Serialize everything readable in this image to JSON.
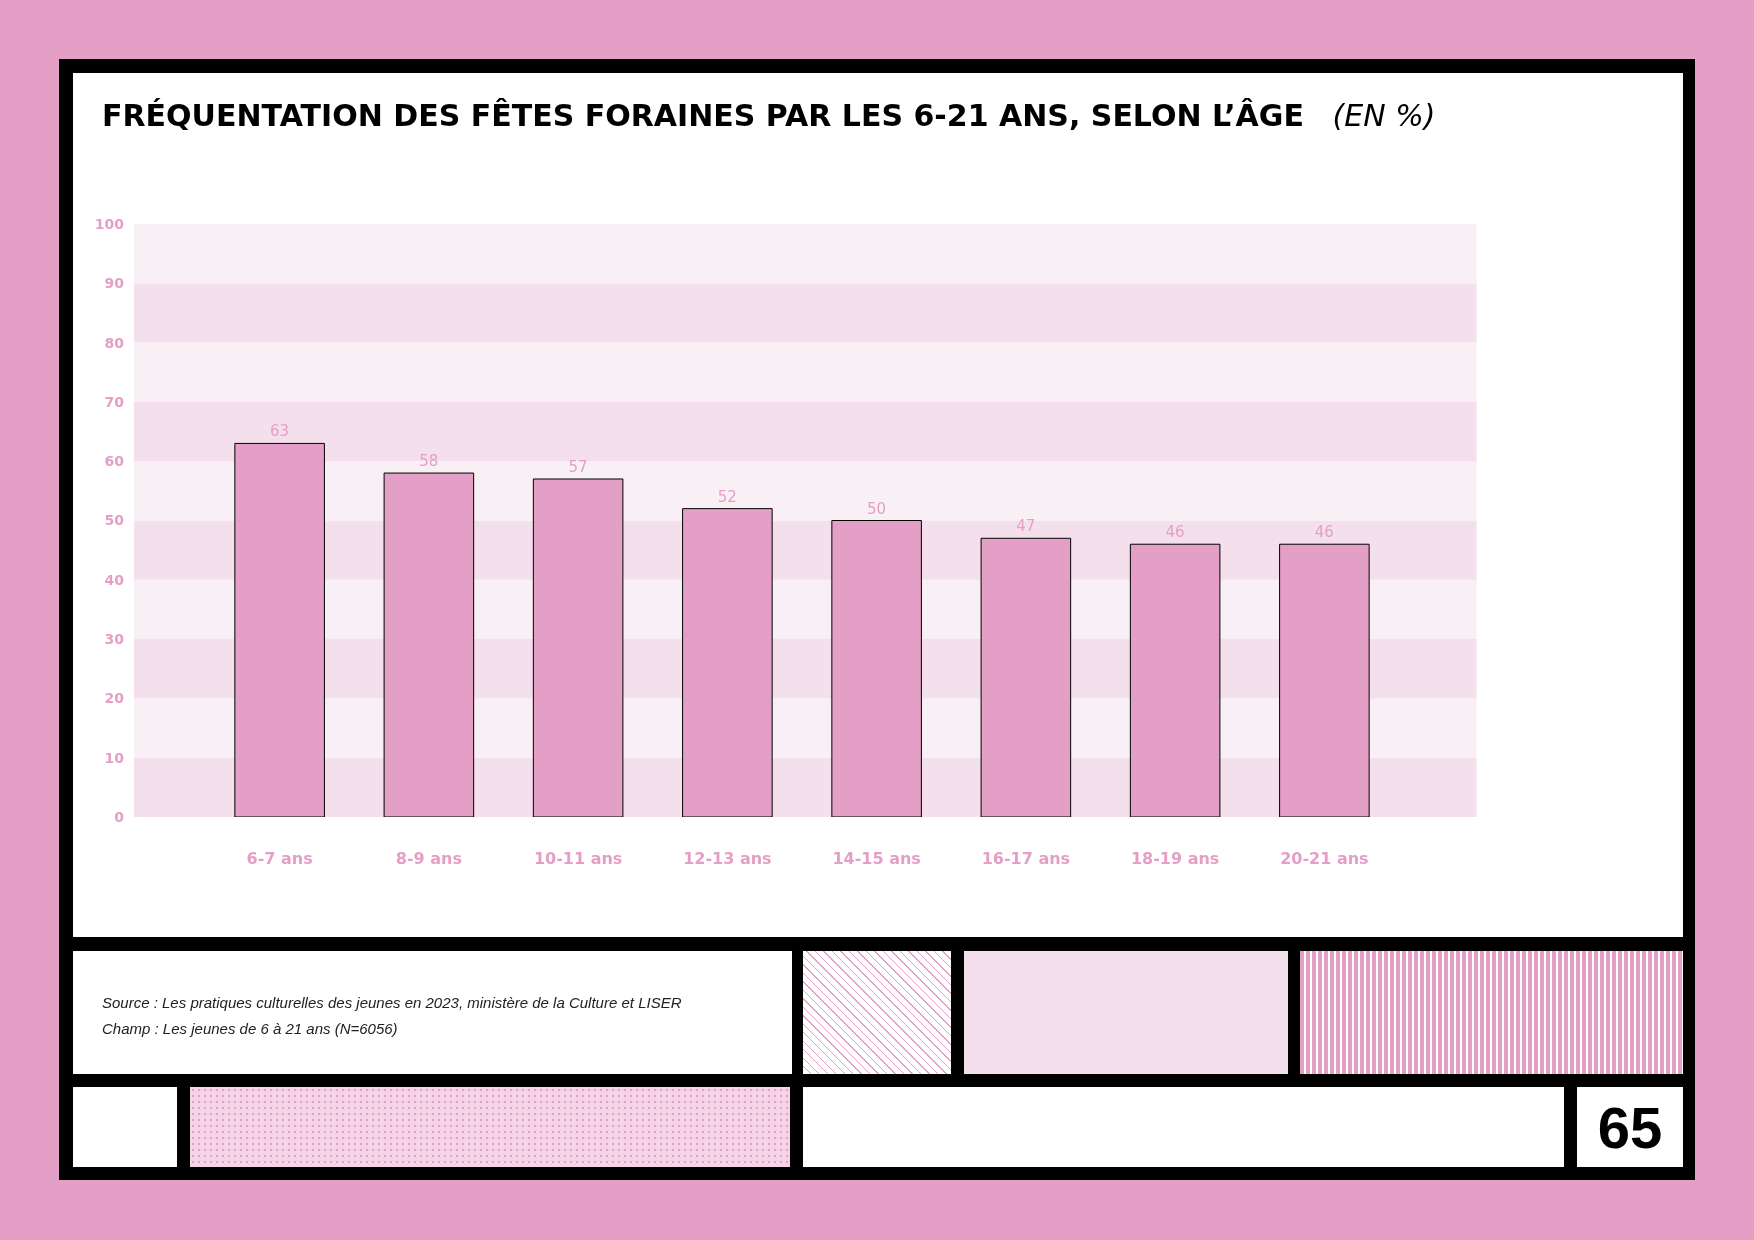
{
  "chart_data": {
    "type": "bar",
    "title": "FRÉQUENTATION DES FÊTES FORAINES PAR LES 6-21 ANS, SELON L’ÂGE",
    "subtitle": "(EN %)",
    "categories": [
      "6-7 ans",
      "8-9 ans",
      "10-11 ans",
      "12-13 ans",
      "14-15 ans",
      "16-17 ans",
      "18-19 ans",
      "20-21 ans"
    ],
    "values": [
      63,
      58,
      57,
      52,
      50,
      47,
      46,
      46
    ],
    "color": "#e49fc6",
    "data_labels": true,
    "ylim": [
      0,
      100
    ],
    "yticks": [
      0,
      10,
      20,
      30,
      40,
      50,
      60,
      70,
      80,
      90,
      100
    ],
    "legend": false,
    "bands": [
      {
        "axis": "y",
        "from": 0,
        "to": 10,
        "color": "#f4e0ec"
      },
      {
        "axis": "y",
        "from": 10,
        "to": 20,
        "color": "#f9f0f5"
      },
      {
        "axis": "y",
        "from": 20,
        "to": 30,
        "color": "#f4e0ec"
      },
      {
        "axis": "y",
        "from": 30,
        "to": 40,
        "color": "#f9f0f5"
      },
      {
        "axis": "y",
        "from": 40,
        "to": 50,
        "color": "#f4e0ec"
      },
      {
        "axis": "y",
        "from": 50,
        "to": 60,
        "color": "#f9f0f5"
      },
      {
        "axis": "y",
        "from": 60,
        "to": 70,
        "color": "#f4e0ec"
      },
      {
        "axis": "y",
        "from": 70,
        "to": 80,
        "color": "#f9f0f5"
      },
      {
        "axis": "y",
        "from": 80,
        "to": 90,
        "color": "#f4e0ec"
      },
      {
        "axis": "y",
        "from": 90,
        "to": 100,
        "color": "#f9f0f5"
      }
    ],
    "annotations": [
      "Source : Les pratiques culturelles des jeunes en 2023, ministère de la Culture et LISER",
      "Champ : Les jeunes de 6 à 21 ans (N=6056)",
      "65"
    ]
  }
}
